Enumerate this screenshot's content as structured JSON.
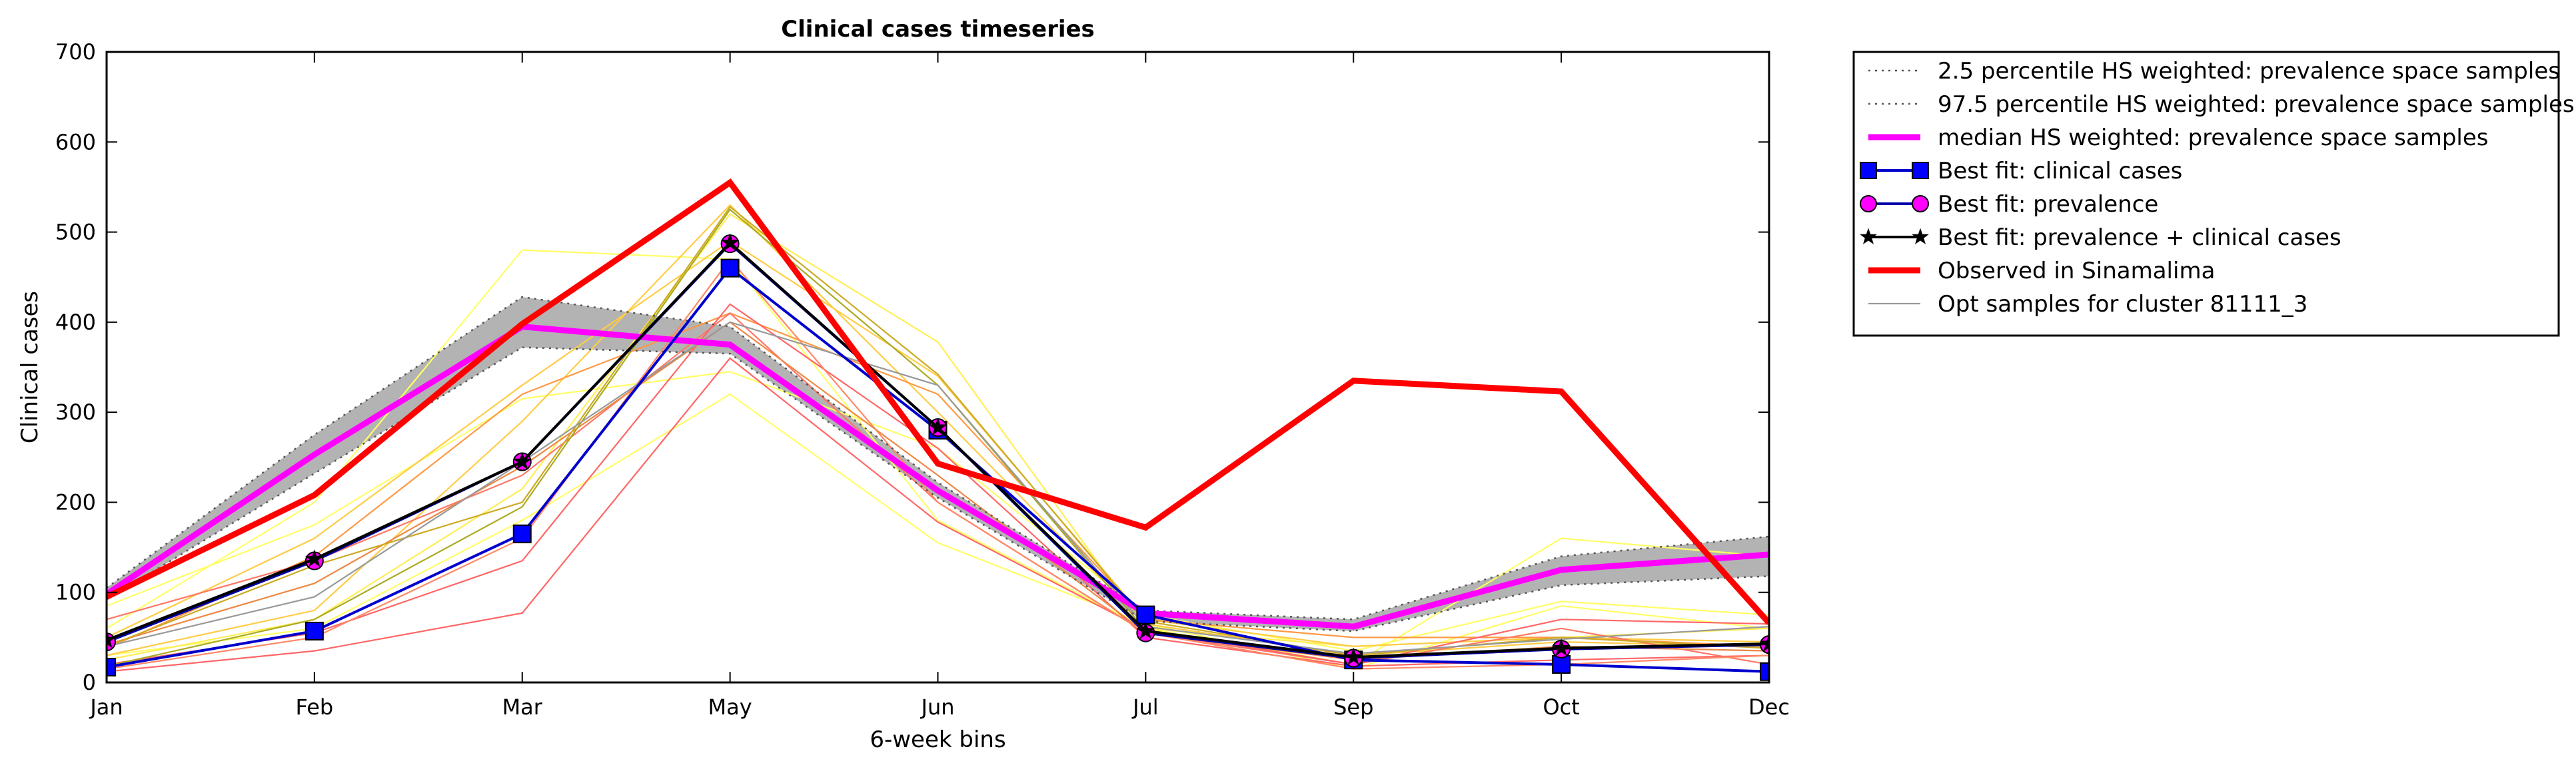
{
  "chart_data": {
    "type": "line",
    "title": "Clinical cases timeseries",
    "xlabel": "6-week bins",
    "ylabel": "Clinical cases",
    "categories": [
      "Jan",
      "Feb",
      "Mar",
      "May",
      "Jun",
      "Jul",
      "Sep",
      "Oct",
      "Dec"
    ],
    "ylim": [
      0,
      700
    ],
    "yticks": [
      0,
      100,
      200,
      300,
      400,
      500,
      600,
      700
    ],
    "grid": false,
    "legend_position": "outside-right",
    "band": {
      "lower": [
        92,
        232,
        372,
        365,
        205,
        68,
        57,
        108,
        118
      ],
      "upper": [
        105,
        275,
        428,
        395,
        222,
        80,
        70,
        140,
        162
      ],
      "color": "#b3b3b3"
    },
    "series": [
      {
        "name": "2.5 percentile HS weighted: prevalence space samples",
        "style": "dotted",
        "color": "#555555",
        "values": [
          92,
          232,
          372,
          365,
          205,
          68,
          57,
          108,
          118
        ]
      },
      {
        "name": "97.5 percentile HS weighted: prevalence space samples",
        "style": "dotted",
        "color": "#555555",
        "values": [
          105,
          275,
          428,
          395,
          222,
          80,
          70,
          140,
          162
        ]
      },
      {
        "name": "median HS weighted: prevalence space samples",
        "style": "thick",
        "color": "#ff00ff",
        "values": [
          98,
          253,
          395,
          375,
          213,
          77,
          62,
          125,
          142
        ]
      },
      {
        "name": "Best fit: clinical cases",
        "style": "square",
        "color": "#0000cc",
        "marker": "#0000ff",
        "values": [
          17,
          57,
          165,
          460,
          280,
          75,
          25,
          20,
          12
        ]
      },
      {
        "name": "Best fit: prevalence",
        "style": "circle",
        "color": "#0000aa",
        "marker": "#ff00ff",
        "values": [
          45,
          135,
          245,
          487,
          283,
          55,
          27,
          37,
          42
        ]
      },
      {
        "name": "Best fit: prevalence + clinical cases",
        "style": "star",
        "color": "#000000",
        "marker": "#000000",
        "values": [
          47,
          137,
          245,
          488,
          283,
          57,
          28,
          38,
          43
        ]
      },
      {
        "name": "Observed in Sinamalima",
        "style": "observed",
        "color": "#ff0000",
        "values": [
          95,
          208,
          398,
          555,
          243,
          172,
          335,
          323,
          66
        ]
      },
      {
        "name": "Opt samples for cluster 81111_3",
        "style": "thin",
        "color": "#999999",
        "values": [
          40,
          95,
          245,
          400,
          330,
          62,
          32,
          48,
          62
        ]
      }
    ],
    "sample_lines": [
      {
        "color": "#ffff66",
        "values": [
          60,
          200,
          480,
          470,
          180,
          60,
          20,
          160,
          140
        ]
      },
      {
        "color": "#ffff66",
        "values": [
          30,
          60,
          180,
          320,
          155,
          65,
          15,
          85,
          60
        ]
      },
      {
        "color": "#ffff66",
        "values": [
          85,
          175,
          315,
          345,
          260,
          75,
          35,
          90,
          75
        ]
      },
      {
        "color": "#ffee55",
        "values": [
          25,
          70,
          215,
          520,
          378,
          60,
          40,
          50,
          60
        ]
      },
      {
        "color": "#ffcc44",
        "values": [
          50,
          160,
          330,
          490,
          340,
          70,
          40,
          50,
          45
        ]
      },
      {
        "color": "#ffcc44",
        "values": [
          30,
          80,
          290,
          530,
          300,
          65,
          30,
          45,
          40
        ]
      },
      {
        "color": "#ff9944",
        "values": [
          38,
          140,
          320,
          410,
          320,
          70,
          50,
          50,
          40
        ]
      },
      {
        "color": "#ff7766",
        "values": [
          70,
          135,
          230,
          410,
          200,
          55,
          20,
          60,
          20
        ]
      },
      {
        "color": "#ff6666",
        "values": [
          12,
          35,
          77,
          360,
          178,
          58,
          20,
          70,
          65
        ]
      },
      {
        "color": "#ff6666",
        "values": [
          20,
          55,
          135,
          420,
          260,
          50,
          18,
          25,
          30
        ]
      },
      {
        "color": "#ff8866",
        "values": [
          15,
          50,
          160,
          470,
          200,
          55,
          15,
          20,
          30
        ]
      },
      {
        "color": "#ee8844",
        "values": [
          42,
          110,
          240,
          400,
          230,
          55,
          25,
          40,
          35
        ]
      },
      {
        "color": "#ccaa22",
        "values": [
          40,
          130,
          200,
          528,
          342,
          68,
          30,
          50,
          38
        ]
      },
      {
        "color": "#aaaa22",
        "values": [
          18,
          70,
          195,
          525,
          330,
          58,
          28,
          38,
          42
        ]
      }
    ]
  }
}
